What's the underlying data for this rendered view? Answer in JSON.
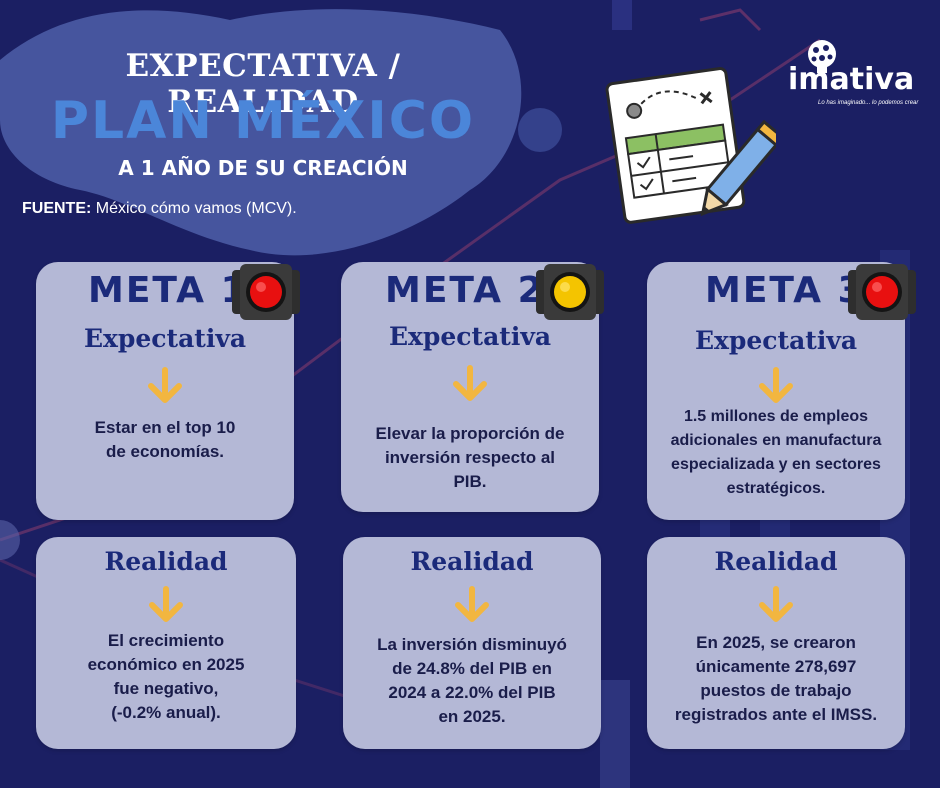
{
  "header": {
    "title_top": "EXPECTATIVA / REALIDAD",
    "title_main": "PLAN MÉXICO",
    "subtitle": "A 1 AÑO DE SU CREACIÓN",
    "source_label": "FUENTE:",
    "source_value": " México cómo vamos (MCV)."
  },
  "logo": {
    "name": "imativa",
    "tagline": "Lo has imaginado... lo podemos crear"
  },
  "colors": {
    "background": "#1b1f63",
    "card": "#b4b8d6",
    "title_blue": "#4b86d9",
    "heading_navy": "#1b2a7a",
    "arrow": "#f2b640",
    "light_red": "#e81010",
    "light_yellow": "#f4c400"
  },
  "goals": [
    {
      "meta": "META 1",
      "light": "red",
      "expectation_label": "Expectativa",
      "expectation_text": "Estar en el top 10\nde economías.",
      "reality_label": "Realidad",
      "reality_text": "El crecimiento\neconómico en 2025\nfue negativo,\n(-0.2% anual)."
    },
    {
      "meta": "META 2",
      "light": "yellow",
      "expectation_label": "Expectativa",
      "expectation_text": "Elevar la proporción de\ninversión respecto al\nPIB.",
      "reality_label": "Realidad",
      "reality_text": "La inversión disminuyó\nde 24.8% del PIB en\n2024 a 22.0% del PIB\nen 2025."
    },
    {
      "meta": "META 3",
      "light": "red",
      "expectation_label": "Expectativa",
      "expectation_text": "1.5 millones de empleos\nadicionales en manufactura\nespecializada y en sectores\nestratégicos.",
      "reality_label": "Realidad",
      "reality_text": "En 2025, se crearon\núnicamente 278,697\npuestos de trabajo\nregistrados ante el IMSS."
    }
  ]
}
